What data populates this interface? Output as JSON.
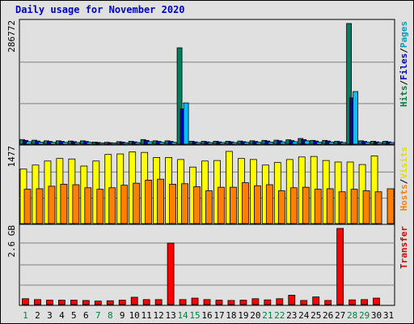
{
  "chart_data": {
    "type": "bar",
    "title": "Daily usage for November 2020",
    "days": [
      "1",
      "2",
      "3",
      "4",
      "5",
      "6",
      "7",
      "8",
      "9",
      "10",
      "11",
      "12",
      "13",
      "14",
      "15",
      "16",
      "17",
      "18",
      "19",
      "20",
      "21",
      "22",
      "23",
      "24",
      "25",
      "26",
      "27",
      "28",
      "29",
      "30",
      "31"
    ],
    "weekend_days": [
      "1",
      "7",
      "8",
      "14",
      "15",
      "21",
      "22",
      "28",
      "29"
    ],
    "panels": [
      {
        "id": "hits_files_pages",
        "y_max_label": "286772",
        "y_max": 286772,
        "right_label_parts": [
          {
            "text": "Hits",
            "color": "#008040"
          },
          {
            "text": "/",
            "color": "#000000"
          },
          {
            "text": "Files",
            "color": "#0000c0"
          },
          {
            "text": "/",
            "color": "#000000"
          },
          {
            "text": "Pages",
            "color": "#00a0c0"
          }
        ],
        "series": [
          {
            "name": "Hits",
            "color": "#008060",
            "values": [
              11000,
              9500,
              8000,
              8000,
              7500,
              8000,
              5000,
              4500,
              6000,
              7000,
              11000,
              8000,
              8000,
              229000,
              7000,
              7000,
              7000,
              7000,
              7500,
              8000,
              9000,
              9500,
              10500,
              13500,
              9000,
              9000,
              7000,
              286772,
              8000,
              7000,
              7000
            ]
          },
          {
            "name": "Files",
            "color": "#0000c0",
            "values": [
              9000,
              7500,
              6500,
              6500,
              6000,
              6500,
              4000,
              3500,
              5000,
              5500,
              9000,
              6500,
              6500,
              84000,
              5500,
              5500,
              5500,
              5500,
              6000,
              6500,
              7500,
              8000,
              8500,
              11000,
              7500,
              7500,
              5500,
              110000,
              6500,
              5500,
              5500
            ]
          },
          {
            "name": "Pages",
            "color": "#00c0ff",
            "values": [
              6000,
              5000,
              4500,
              4500,
              4000,
              4500,
              3000,
              2500,
              3500,
              4000,
              6000,
              4500,
              4500,
              98000,
              4000,
              4000,
              4000,
              4000,
              4500,
              4500,
              5000,
              5500,
              6000,
              8000,
              5000,
              5000,
              4000,
              125000,
              4500,
              4000,
              4000
            ]
          }
        ]
      },
      {
        "id": "visits_hosts",
        "y_max_label": "1477",
        "y_max": 1477,
        "right_label_parts": [
          {
            "text": "Hosts",
            "color": "#ff8000"
          },
          {
            "text": "/",
            "color": "#000000"
          },
          {
            "text": "Visits",
            "color": "#e0e000"
          }
        ],
        "series": [
          {
            "name": "Visits",
            "color": "#ffff00",
            "values": [
              1080,
              1160,
              1240,
              1290,
              1280,
              1140,
              1240,
              1370,
              1380,
              1420,
              1410,
              1310,
              1310,
              1270,
              1120,
              1240,
              1250,
              1430,
              1290,
              1270,
              1160,
              1210,
              1270,
              1320,
              1330,
              1250,
              1220,
              1220,
              1170,
              1340,
              0
            ]
          },
          {
            "name": "Hosts",
            "color": "#ff8000",
            "values": [
              680,
              690,
              740,
              780,
              770,
              710,
              680,
              710,
              760,
              800,
              860,
              880,
              780,
              790,
              730,
              650,
              720,
              720,
              810,
              750,
              770,
              650,
              710,
              720,
              680,
              690,
              630,
              680,
              650,
              630,
              690
            ]
          }
        ]
      },
      {
        "id": "transfer",
        "y_max_label": "2.6 GB",
        "y_max": 2.6,
        "right_label_parts": [
          {
            "text": "Transfer",
            "color": "#e00000"
          }
        ],
        "series": [
          {
            "name": "Transfer",
            "color": "#ff0000",
            "values": [
              0.2,
              0.17,
              0.15,
              0.15,
              0.15,
              0.14,
              0.12,
              0.13,
              0.15,
              0.25,
              0.17,
              0.17,
              2.1,
              0.17,
              0.22,
              0.17,
              0.15,
              0.14,
              0.15,
              0.2,
              0.16,
              0.2,
              0.32,
              0.14,
              0.26,
              0.14,
              2.6,
              0.16,
              0.17,
              0.22,
              0
            ]
          }
        ]
      }
    ],
    "grid": true
  }
}
